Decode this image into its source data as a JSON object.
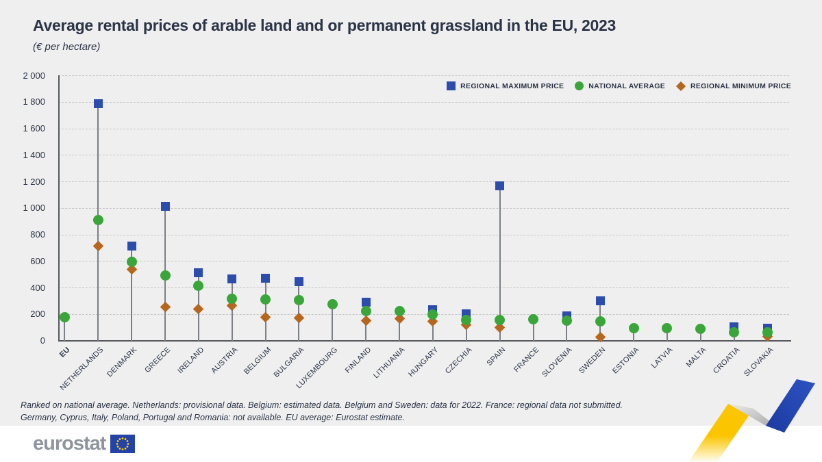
{
  "title": "Average rental prices of arable land and or permanent grassland in the EU, 2023",
  "subtitle": "(€ per hectare)",
  "legend": [
    {
      "label": "REGIONAL MAXIMUM PRICE",
      "color": "#2d4dad",
      "shape": "square"
    },
    {
      "label": "NATIONAL AVERAGE",
      "color": "#3aa63a",
      "shape": "circle"
    },
    {
      "label": "REGIONAL MINIMUM PRICE",
      "color": "#b4671d",
      "shape": "diamond"
    }
  ],
  "footnotes": [
    "Ranked on national average. Netherlands: provisional data. Belgium: estimated data. Belgium and Sweden: data for 2022. France: regional data not submitted.",
    "Germany, Cyprus, Italy, Poland, Portugal and Romania: not available. EU average: Eurostat estimate."
  ],
  "logo": {
    "text": "eurostat"
  },
  "colors": {
    "regional_maximum": "#2d4dad",
    "national_average": "#3aa63a",
    "regional_minimum": "#b4671d",
    "panel_background": "#efefef",
    "text": "#2b3446"
  },
  "chart_data": {
    "type": "scatter",
    "title": "Average rental prices of arable land and or permanent grassland in the EU, 2023",
    "ylabel": "€ per hectare",
    "ylim": [
      0,
      2000
    ],
    "ytick_step": 200,
    "ytick_labels": [
      "0",
      "200",
      "400",
      "600",
      "800",
      "1 000",
      "1 200",
      "1 400",
      "1 600",
      "1 800",
      "2 000"
    ],
    "grid": "horizontal-dashed",
    "legend_position": "top-right",
    "categories": [
      "EU",
      "NETHERLANDS",
      "DENMARK",
      "GREECE",
      "IRELAND",
      "AUSTRIA",
      "BELGIUM",
      "BULGARIA",
      "LUXEMBOURG",
      "FINLAND",
      "LITHUANIA",
      "HUNGARY",
      "CZECHIA",
      "SPAIN",
      "FRANCE",
      "SLOVENIA",
      "SWEDEN",
      "ESTONIA",
      "LATVIA",
      "MALTA",
      "CROATIA",
      "SLOVAKIA"
    ],
    "series": [
      {
        "name": "REGIONAL MAXIMUM PRICE",
        "values": [
          null,
          1787,
          715,
          1012,
          512,
          467,
          470,
          448,
          null,
          293,
          null,
          237,
          203,
          1170,
          null,
          186,
          302,
          null,
          null,
          null,
          106,
          96
        ]
      },
      {
        "name": "NATIONAL AVERAGE",
        "values": [
          177,
          910,
          597,
          492,
          413,
          318,
          311,
          309,
          275,
          227,
          223,
          200,
          159,
          159,
          163,
          152,
          149,
          98,
          98,
          92,
          66,
          65
        ]
      },
      {
        "name": "REGIONAL MINIMUM PRICE",
        "values": [
          null,
          714,
          537,
          256,
          241,
          268,
          177,
          173,
          null,
          154,
          170,
          146,
          119,
          102,
          null,
          null,
          26,
          null,
          null,
          null,
          null,
          35
        ]
      }
    ]
  }
}
